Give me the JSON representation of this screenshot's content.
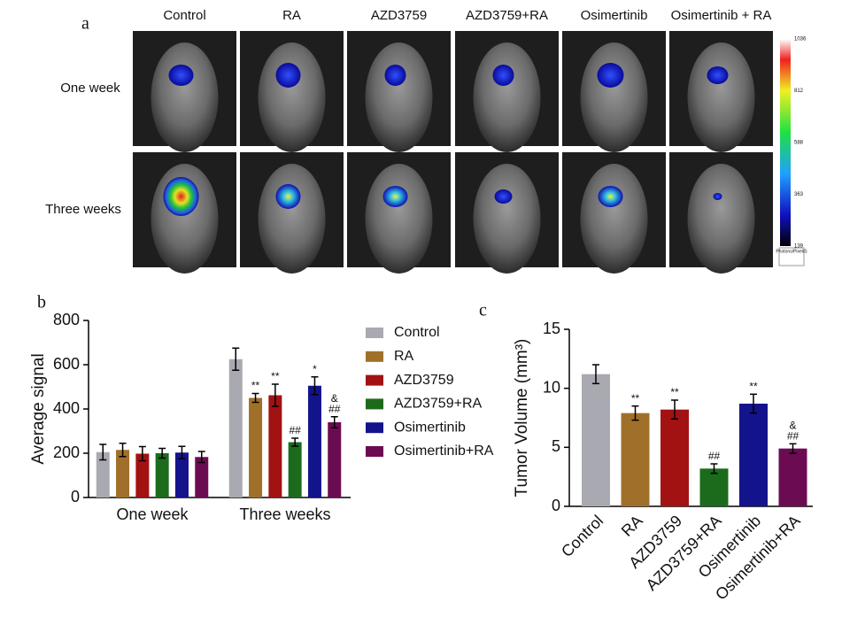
{
  "figure_a": {
    "letter": "a",
    "columns": [
      "Control",
      "RA",
      "AZD3759",
      "AZD3759+RA",
      "Osimertinib",
      "Osimertinib + RA"
    ],
    "rows": [
      "One week",
      "Three weeks"
    ],
    "colorbar": {
      "lim": [
        139,
        1036
      ],
      "ticks": [
        1036,
        812,
        588,
        363,
        139
      ],
      "unit_label": "Photons/Pixel/S"
    }
  },
  "chart_data": [
    {
      "type": "grouped_bar",
      "letter": "b",
      "ylabel": "Average signal",
      "categories": [
        "One week",
        "Three weeks"
      ],
      "ylim": [
        0,
        800
      ],
      "yticks": [
        0,
        200,
        400,
        600,
        800
      ],
      "legend": "right",
      "series": [
        {
          "name": "Control",
          "color": "#a9a9b1",
          "values": [
            205,
            625
          ],
          "errors": [
            35,
            50
          ],
          "annotations": [
            null,
            null
          ]
        },
        {
          "name": "RA",
          "color": "#a0702a",
          "values": [
            215,
            450
          ],
          "errors": [
            30,
            20
          ],
          "annotations": [
            null,
            "**"
          ]
        },
        {
          "name": "AZD3759",
          "color": "#a31212",
          "values": [
            198,
            462
          ],
          "errors": [
            32,
            50
          ],
          "annotations": [
            null,
            "**"
          ]
        },
        {
          "name": "AZD3759+RA",
          "color": "#1c6b1c",
          "values": [
            200,
            250
          ],
          "errors": [
            22,
            18
          ],
          "annotations": [
            null,
            "##"
          ]
        },
        {
          "name": "Osimertinib",
          "color": "#13138c",
          "values": [
            203,
            505
          ],
          "errors": [
            28,
            40
          ],
          "annotations": [
            null,
            "*"
          ]
        },
        {
          "name": "Osimertinib+RA",
          "color": "#6b0c52",
          "values": [
            183,
            340
          ],
          "errors": [
            25,
            25
          ],
          "annotations": [
            null,
            [
              "&",
              "##"
            ]
          ]
        }
      ]
    },
    {
      "type": "bar",
      "letter": "c",
      "ylabel": "Tumor Volume (mm³)",
      "categories": [
        "Control",
        "RA",
        "AZD3759",
        "AZD3759+RA",
        "Osimertinib",
        "Osimertinib+RA"
      ],
      "values": [
        11.2,
        7.9,
        8.2,
        3.2,
        8.7,
        4.9
      ],
      "errors": [
        0.8,
        0.6,
        0.8,
        0.4,
        0.8,
        0.4
      ],
      "colors": [
        "#a9a9b1",
        "#a0702a",
        "#a31212",
        "#1c6b1c",
        "#13138c",
        "#6b0c52"
      ],
      "annotations": [
        null,
        "**",
        "**",
        "##",
        "**",
        [
          "&",
          "##"
        ]
      ],
      "ylim": [
        0,
        15
      ],
      "yticks": [
        0,
        5,
        10,
        15
      ]
    }
  ]
}
